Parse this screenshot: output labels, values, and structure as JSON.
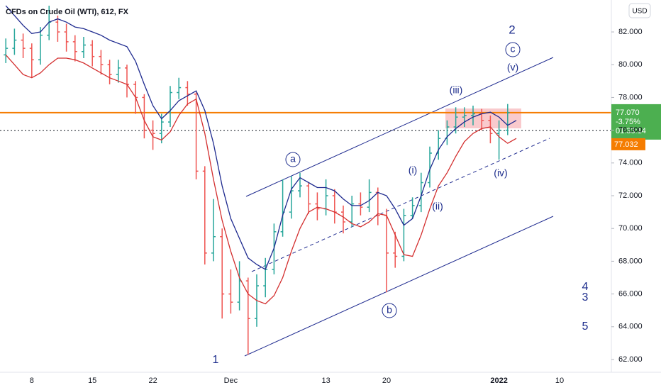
{
  "chart_data": {
    "type": "ohlc",
    "title": "CFDs on Crude Oil (WTI), 612, FX",
    "currency": "USD",
    "categories": [
      null,
      null,
      null,
      null,
      "8",
      null,
      null,
      null,
      null,
      null,
      null,
      "15",
      null,
      null,
      null,
      null,
      null,
      null,
      "22",
      null,
      null,
      null,
      null,
      null,
      null,
      null,
      null,
      "Dec",
      null,
      null,
      null,
      null,
      null,
      null,
      null,
      null,
      null,
      null,
      "13",
      null,
      null,
      null,
      null,
      null,
      null,
      "20",
      null,
      null,
      null,
      null,
      null,
      null,
      null,
      null,
      null,
      null,
      null,
      null,
      "2022",
      null,
      null,
      null,
      null,
      null,
      null,
      "10"
    ],
    "open": [
      null,
      80.6,
      81.0,
      81.5,
      81.0,
      80.3,
      81.8,
      82.6,
      82.0,
      81.4,
      80.8,
      81.2,
      80.5,
      80.0,
      79.4,
      79.8,
      78.8,
      78.0,
      76.0,
      75.8,
      76.5,
      78.3,
      78.6,
      78.2,
      73.5,
      68.5,
      69.5,
      66.0,
      65.5,
      66.8,
      64.5,
      66.5,
      67.5,
      69.8,
      71.0,
      72.3,
      72.6,
      71.5,
      71.2,
      72.0,
      71.0,
      70.4,
      71.5,
      71.3,
      72.2,
      70.8,
      68.5,
      68.3,
      70.8,
      71.4,
      72.8,
      74.6,
      75.5,
      76.2,
      76.8,
      76.9,
      77.0,
      76.6,
      75.8,
      76.0,
      null,
      null,
      null,
      null,
      null,
      null
    ],
    "high": [
      null,
      81.6,
      82.2,
      81.9,
      81.3,
      82.3,
      83.6,
      83.0,
      82.5,
      81.8,
      81.7,
      81.5,
      80.9,
      80.3,
      80.3,
      80.0,
      79.0,
      78.2,
      76.6,
      77.0,
      78.7,
      79.2,
      79.0,
      78.3,
      73.8,
      71.8,
      70.0,
      67.5,
      68.0,
      67.0,
      67.2,
      68.2,
      70.3,
      73.0,
      73.2,
      73.4,
      72.8,
      72.2,
      73.0,
      72.4,
      71.4,
      72.0,
      72.2,
      73.0,
      72.5,
      71.2,
      69.8,
      71.2,
      71.9,
      73.4,
      75.0,
      76.0,
      76.6,
      77.4,
      77.4,
      77.5,
      77.3,
      76.9,
      76.6,
      77.6,
      null,
      null,
      null,
      null,
      null,
      null
    ],
    "low": [
      null,
      80.1,
      80.6,
      80.4,
      79.2,
      80.0,
      81.5,
      81.4,
      80.8,
      80.2,
      80.4,
      79.9,
      79.4,
      78.8,
      78.9,
      78.0,
      77.0,
      75.5,
      74.8,
      75.2,
      76.2,
      77.9,
      77.5,
      73.0,
      67.8,
      68.0,
      64.5,
      64.8,
      65.0,
      62.3,
      64.0,
      65.8,
      67.2,
      69.5,
      70.6,
      71.9,
      70.9,
      70.5,
      70.8,
      70.3,
      69.7,
      70.1,
      70.8,
      71.0,
      70.2,
      66.1,
      67.6,
      68.0,
      70.6,
      71.0,
      72.5,
      74.2,
      75.1,
      75.8,
      76.2,
      76.3,
      76.0,
      75.2,
      74.2,
      75.7,
      null,
      null,
      null,
      null,
      null,
      null
    ],
    "close": [
      null,
      81.0,
      81.5,
      81.0,
      80.3,
      81.8,
      82.6,
      82.0,
      81.4,
      80.8,
      81.2,
      80.5,
      80.0,
      79.4,
      79.8,
      78.8,
      78.0,
      76.0,
      75.8,
      76.5,
      78.3,
      78.6,
      78.2,
      73.5,
      68.5,
      69.5,
      66.0,
      65.5,
      66.8,
      64.5,
      66.5,
      67.5,
      69.8,
      71.0,
      72.3,
      72.6,
      71.5,
      71.2,
      72.0,
      71.0,
      70.4,
      71.5,
      71.3,
      72.2,
      70.8,
      68.5,
      68.3,
      70.8,
      71.4,
      72.8,
      74.6,
      75.5,
      76.2,
      76.8,
      76.9,
      77.0,
      76.6,
      75.8,
      76.0,
      77.07,
      null,
      null,
      null,
      null,
      null,
      null
    ],
    "up_color": "#26a69a",
    "down_color": "#ef5350",
    "series": [
      {
        "color": "#1e2a8f",
        "values": [
          null,
          83.6,
          83.0,
          82.4,
          81.9,
          82.0,
          82.6,
          82.8,
          82.6,
          82.3,
          82.2,
          82.0,
          81.8,
          81.5,
          81.3,
          81.1,
          80.2,
          78.8,
          77.5,
          76.7,
          77.2,
          77.8,
          78.1,
          78.4,
          77.2,
          75.2,
          72.6,
          70.6,
          69.4,
          68.2,
          67.8,
          67.5,
          68.8,
          70.8,
          72.4,
          73.1,
          72.8,
          72.5,
          72.5,
          72.3,
          71.8,
          71.4,
          71.4,
          71.7,
          72.2,
          72.0,
          71.2,
          70.2,
          70.6,
          72.0,
          73.6,
          74.8,
          75.6,
          76.1,
          76.5,
          76.8,
          77.0,
          77.1,
          76.8,
          76.3,
          76.6,
          null,
          null,
          null,
          null,
          null
        ]
      },
      {
        "color": "#d32f2f",
        "values": [
          null,
          80.6,
          80.0,
          79.4,
          79.2,
          79.5,
          80.0,
          80.4,
          80.4,
          80.3,
          80.1,
          79.8,
          79.5,
          79.2,
          79.0,
          78.8,
          78.0,
          76.6,
          75.6,
          75.4,
          75.9,
          76.9,
          77.6,
          77.9,
          75.8,
          73.0,
          70.5,
          68.6,
          67.0,
          66.0,
          65.6,
          65.4,
          65.9,
          67.0,
          68.6,
          70.0,
          71.0,
          71.3,
          71.2,
          71.0,
          70.7,
          70.3,
          70.1,
          70.4,
          70.9,
          70.8,
          69.6,
          68.4,
          68.3,
          69.6,
          71.2,
          72.6,
          73.4,
          74.4,
          75.3,
          75.8,
          76.1,
          76.2,
          75.6,
          75.2,
          75.5,
          null,
          null,
          null,
          null,
          null
        ]
      }
    ],
    "ylim": [
      61.22,
      83.95
    ],
    "yticks": [
      {
        "value": 62,
        "label": "62.000"
      },
      {
        "value": 64,
        "label": "64.000"
      },
      {
        "value": 66,
        "label": "66.000"
      },
      {
        "value": 68,
        "label": "68.000"
      },
      {
        "value": 70,
        "label": "70.000"
      },
      {
        "value": 72,
        "label": "72.000"
      },
      {
        "value": 74,
        "label": "74.000"
      },
      {
        "value": 76,
        "label": "76.000"
      },
      {
        "value": 78,
        "label": "78.000"
      },
      {
        "value": 80,
        "label": "80.000"
      },
      {
        "value": 82,
        "label": "82.000"
      }
    ],
    "last_price": {
      "value": 77.07,
      "label": "77.070"
    },
    "change": {
      "value": -3.75,
      "label": "-3.75%"
    },
    "countdown": "01:33:14",
    "second_price_label": "77.032",
    "dotted_line": 75.98,
    "annotations": [
      "2",
      "c",
      "(v)",
      "(iii)",
      "a",
      "(i)",
      "(ii)",
      "(iv)",
      "b",
      "1",
      "4",
      "3",
      "5"
    ]
  }
}
